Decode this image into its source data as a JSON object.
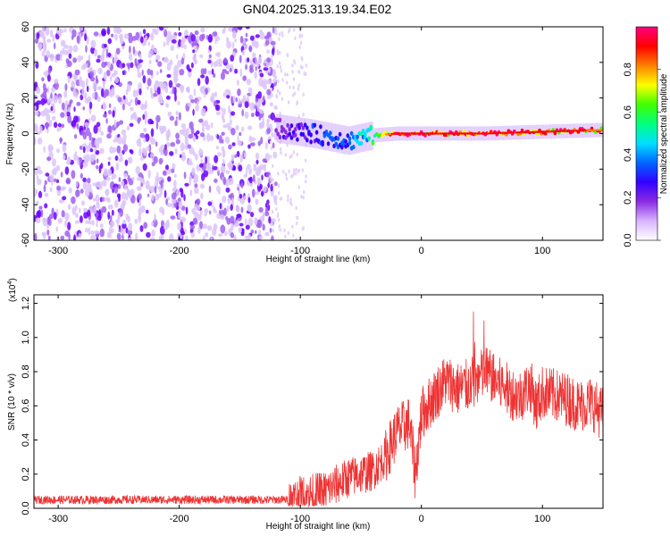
{
  "title": "GN04.2025.313.19.34.E02",
  "chart_data": [
    {
      "type": "heatmap",
      "xlabel": "Height of straight line (km)",
      "ylabel": "Frequency (Hz)",
      "xlim": [
        -320,
        150
      ],
      "ylim": [
        -60,
        60
      ],
      "xticks": [
        -300,
        -200,
        -100,
        0,
        100
      ],
      "yticks": [
        -60,
        -40,
        -20,
        0,
        20,
        40,
        60
      ],
      "colorbar": {
        "label": "Normalized spectral amplitude",
        "range": [
          0,
          1
        ],
        "ticks": [
          "0.0",
          "0.2",
          "0.4",
          "0.6",
          "0.8"
        ],
        "colors": [
          "#ffffff",
          "#d8b4ff",
          "#8a2be2",
          "#3300ff",
          "#0066ff",
          "#00e0ff",
          "#00ff80",
          "#40ff00",
          "#ffff00",
          "#ff8000",
          "#ff0000",
          "#ff0080"
        ]
      },
      "noise_region": {
        "x": [
          -320,
          -120
        ],
        "amplitude": 0.15
      },
      "signal_band": [
        {
          "x": -120,
          "y": 3,
          "amplitude": 0.2
        },
        {
          "x": -90,
          "y": 0,
          "amplitude": 0.3
        },
        {
          "x": -60,
          "y": -4,
          "amplitude": 0.35
        },
        {
          "x": -40,
          "y": -1,
          "amplitude": 0.55
        },
        {
          "x": -20,
          "y": 0,
          "amplitude": 0.95
        },
        {
          "x": 0,
          "y": 0,
          "amplitude": 0.95
        },
        {
          "x": 50,
          "y": 0,
          "amplitude": 0.95
        },
        {
          "x": 100,
          "y": 1,
          "amplitude": 0.9
        },
        {
          "x": 150,
          "y": 2,
          "amplitude": 0.85
        }
      ]
    },
    {
      "type": "line",
      "xlabel": "Height of straight line (km)",
      "ylabel": "SNR (10 * v/v)",
      "yscale_note": "(x10",
      "yscale_exponent": "4",
      "xlim": [
        -320,
        150
      ],
      "ylim": [
        0,
        1.25
      ],
      "xticks": [
        -300,
        -200,
        -100,
        0,
        100
      ],
      "yticks": [
        "0.0",
        "0.2",
        "0.4",
        "0.6",
        "0.8",
        "1.0",
        "1.2"
      ],
      "color": "#ee3333",
      "series": [
        {
          "x": [
            -320,
            -250,
            -150,
            -110,
            -100,
            -80,
            -60,
            -40,
            -30,
            -20,
            -10,
            -5,
            0,
            5,
            10,
            20,
            30,
            40,
            50,
            55,
            60,
            70,
            80,
            90,
            95,
            100,
            110,
            120,
            130,
            140,
            150
          ],
          "y": [
            0.05,
            0.05,
            0.05,
            0.05,
            0.07,
            0.1,
            0.18,
            0.22,
            0.3,
            0.45,
            0.5,
            0.2,
            0.55,
            0.6,
            0.65,
            0.75,
            0.7,
            0.72,
            0.78,
            0.8,
            0.75,
            0.7,
            0.65,
            0.72,
            0.6,
            0.68,
            0.66,
            0.64,
            0.6,
            0.62,
            0.55
          ]
        }
      ]
    }
  ]
}
